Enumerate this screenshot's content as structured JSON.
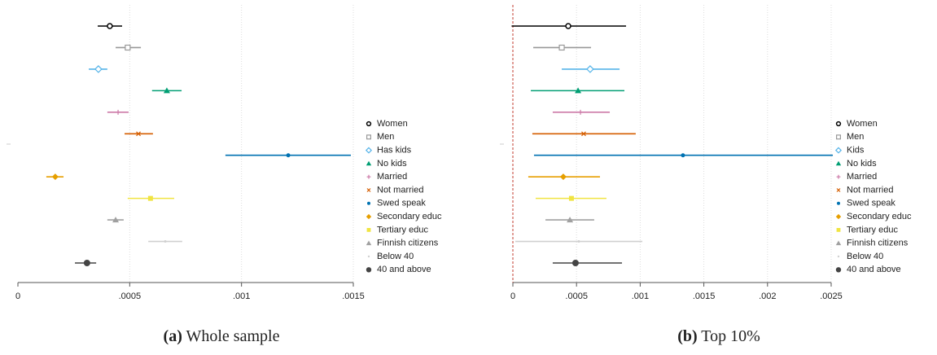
{
  "chart_data": [
    {
      "type": "coefplot",
      "caption_label": "(a)",
      "caption": "Whole sample",
      "xlim": [
        0,
        0.0015
      ],
      "xticks": [
        0,
        {
          "value": 0.0005,
          "label": ".0005"
        },
        {
          "value": 0.001,
          "label": ".001"
        },
        {
          "value": 0.0015,
          "label": ".0015"
        }
      ],
      "grid": true,
      "legend_position": "right",
      "series": [
        {
          "name": "Women",
          "color": "#000000",
          "marker": "circle-hollow",
          "value": 0.000411,
          "lower": 0.000357,
          "upper": 0.000466
        },
        {
          "name": "Men",
          "color": "#999999",
          "marker": "square-hollow",
          "value": 0.000491,
          "lower": 0.000437,
          "upper": 0.00055
        },
        {
          "name": "Has kids",
          "color": "#56b4e9",
          "marker": "diamond-hollow",
          "value": 0.00036,
          "lower": 0.000317,
          "upper": 0.0004
        },
        {
          "name": "No kids",
          "color": "#009e73",
          "marker": "triangle",
          "value": 0.000666,
          "lower": 0.0006,
          "upper": 0.000732
        },
        {
          "name": "Married",
          "color": "#cc79a7",
          "marker": "plus",
          "value": 0.000448,
          "lower": 0.0004,
          "upper": 0.000495
        },
        {
          "name": "Not married",
          "color": "#d55e00",
          "marker": "x",
          "value": 0.000539,
          "lower": 0.000477,
          "upper": 0.000604
        },
        {
          "name": "Swed speak",
          "color": "#0072b2",
          "marker": "circle",
          "value": 0.001209,
          "lower": 0.000928,
          "upper": 0.001489
        },
        {
          "name": "Secondary educ",
          "color": "#e69f00",
          "marker": "diamond",
          "value": 0.000167,
          "lower": 0.000127,
          "upper": 0.000204
        },
        {
          "name": "Tertiary educ",
          "color": "#f0e442",
          "marker": "square",
          "value": 0.000593,
          "lower": 0.000491,
          "upper": 0.000699
        },
        {
          "name": "Finnish citizens",
          "color": "#a0a0a0",
          "marker": "triangle",
          "value": 0.000437,
          "lower": 0.0004,
          "upper": 0.000473
        },
        {
          "name": "Below 40",
          "color": "#d0d0d0",
          "marker": "dot",
          "value": 0.000659,
          "lower": 0.000583,
          "upper": 0.000735
        },
        {
          "name": "40 and above",
          "color": "#444444",
          "marker": "circle-large",
          "value": 0.000309,
          "lower": 0.000255,
          "upper": 0.00035
        }
      ]
    },
    {
      "type": "coefplot",
      "caption_label": "(b)",
      "caption": "Top 10%",
      "xlim": [
        0,
        0.0025
      ],
      "xticks": [
        0,
        {
          "value": 0.0005,
          "label": ".0005"
        },
        {
          "value": 0.001,
          "label": ".001"
        },
        {
          "value": 0.0015,
          "label": ".0015"
        },
        {
          "value": 0.002,
          "label": ".002"
        },
        {
          "value": 0.0025,
          "label": ".0025"
        }
      ],
      "grid": true,
      "legend_position": "right",
      "xline": 0,
      "xline_color": "#c0392b",
      "series": [
        {
          "name": "Women",
          "color": "#000000",
          "marker": "circle-hollow",
          "value": 0.000435,
          "lower": -1e-05,
          "upper": 0.000889
        },
        {
          "name": "Men",
          "color": "#999999",
          "marker": "square-hollow",
          "value": 0.000384,
          "lower": 0.00016,
          "upper": 0.000614
        },
        {
          "name": "Kids",
          "color": "#56b4e9",
          "marker": "diamond-hollow",
          "value": 0.000607,
          "lower": 0.000384,
          "upper": 0.000838
        },
        {
          "name": "No kids",
          "color": "#009e73",
          "marker": "triangle",
          "value": 0.000512,
          "lower": 0.000141,
          "upper": 0.000876
        },
        {
          "name": "Married",
          "color": "#cc79a7",
          "marker": "plus",
          "value": 0.000531,
          "lower": 0.000313,
          "upper": 0.000761
        },
        {
          "name": "Not married",
          "color": "#d55e00",
          "marker": "x",
          "value": 0.000556,
          "lower": 0.000153,
          "upper": 0.000965
        },
        {
          "name": "Swed speak",
          "color": "#0072b2",
          "marker": "circle",
          "value": 0.001336,
          "lower": 0.000166,
          "upper": 0.002513
        },
        {
          "name": "Secondary educ",
          "color": "#e69f00",
          "marker": "diamond",
          "value": 0.000396,
          "lower": 0.000121,
          "upper": 0.000684
        },
        {
          "name": "Tertiary educ",
          "color": "#f0e442",
          "marker": "square",
          "value": 0.00046,
          "lower": 0.000179,
          "upper": 0.000735
        },
        {
          "name": "Finnish citizens",
          "color": "#a0a0a0",
          "marker": "triangle",
          "value": 0.000448,
          "lower": 0.000256,
          "upper": 0.000639
        },
        {
          "name": "Below 40",
          "color": "#d0d0d0",
          "marker": "dot",
          "value": 0.000518,
          "lower": 1.9e-05,
          "upper": 0.001017
        },
        {
          "name": "40 and above",
          "color": "#444444",
          "marker": "circle-large",
          "value": 0.000492,
          "lower": 0.000313,
          "upper": 0.000857
        }
      ]
    }
  ]
}
